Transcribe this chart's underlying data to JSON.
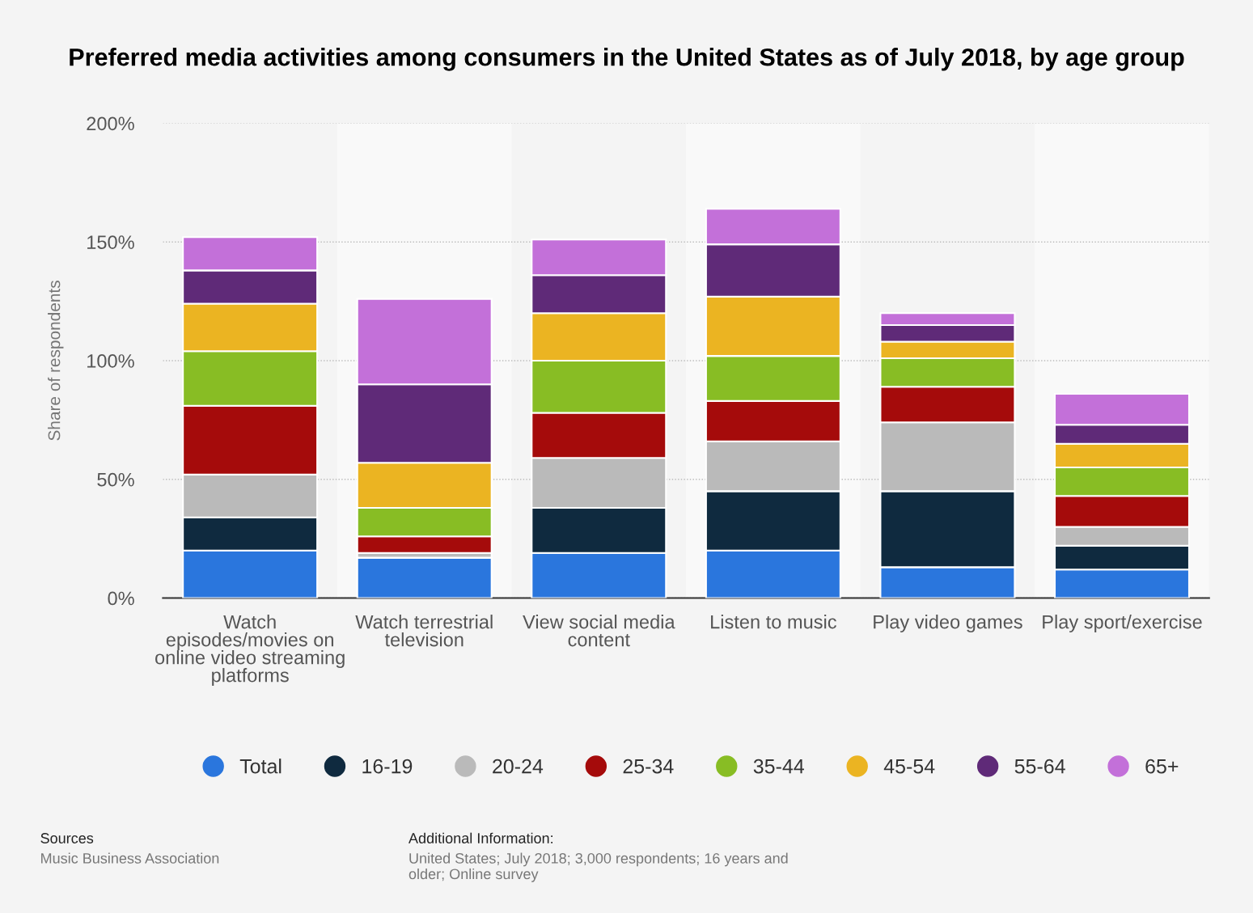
{
  "chart_data": {
    "type": "bar",
    "stacked": true,
    "title": "Preferred media activities among consumers in the United States as of July 2018, by age group",
    "ylabel": "Share of respondents",
    "categories": [
      "Watch episodes/movies on online video streaming platforms",
      "Watch terrestrial television",
      "View social media content",
      "Listen to music",
      "Play video games",
      "Play sport/exercise"
    ],
    "series": [
      {
        "name": "Total",
        "color": "#2a76dd",
        "values": [
          20,
          17,
          19,
          20,
          13,
          12
        ]
      },
      {
        "name": "16-19",
        "color": "#0f2a3f",
        "values": [
          14,
          null,
          19,
          25,
          32,
          10
        ]
      },
      {
        "name": "20-24",
        "color": "#bababa",
        "values": [
          18,
          2,
          21,
          21,
          29,
          8
        ]
      },
      {
        "name": "25-34",
        "color": "#a50b0b",
        "values": [
          29,
          7,
          19,
          17,
          15,
          13
        ]
      },
      {
        "name": "35-44",
        "color": "#88bd24",
        "values": [
          23,
          12,
          22,
          19,
          12,
          12
        ]
      },
      {
        "name": "45-54",
        "color": "#ebb422",
        "values": [
          20,
          19,
          20,
          25,
          7,
          10
        ]
      },
      {
        "name": "55-64",
        "color": "#5f2a78",
        "values": [
          14,
          33,
          16,
          22,
          7,
          8
        ]
      },
      {
        "name": "65+",
        "color": "#c370d9",
        "values": [
          14,
          36,
          15,
          15,
          5,
          13
        ]
      }
    ],
    "ylim": [
      0,
      200
    ],
    "yticks": [
      {
        "value": 0,
        "label": "0%"
      },
      {
        "value": 50,
        "label": "50%"
      },
      {
        "value": 100,
        "label": "100%"
      },
      {
        "value": 150,
        "label": "150%"
      },
      {
        "value": 200,
        "label": "200%"
      }
    ],
    "grid": "y",
    "legend": "bottom",
    "marker": "circle",
    "annotations": [
      "Sources",
      "Music Business Association",
      "Additional Information:",
      "United States; July 2018; 3,000 respondents; 16 years and older; Online survey"
    ]
  }
}
